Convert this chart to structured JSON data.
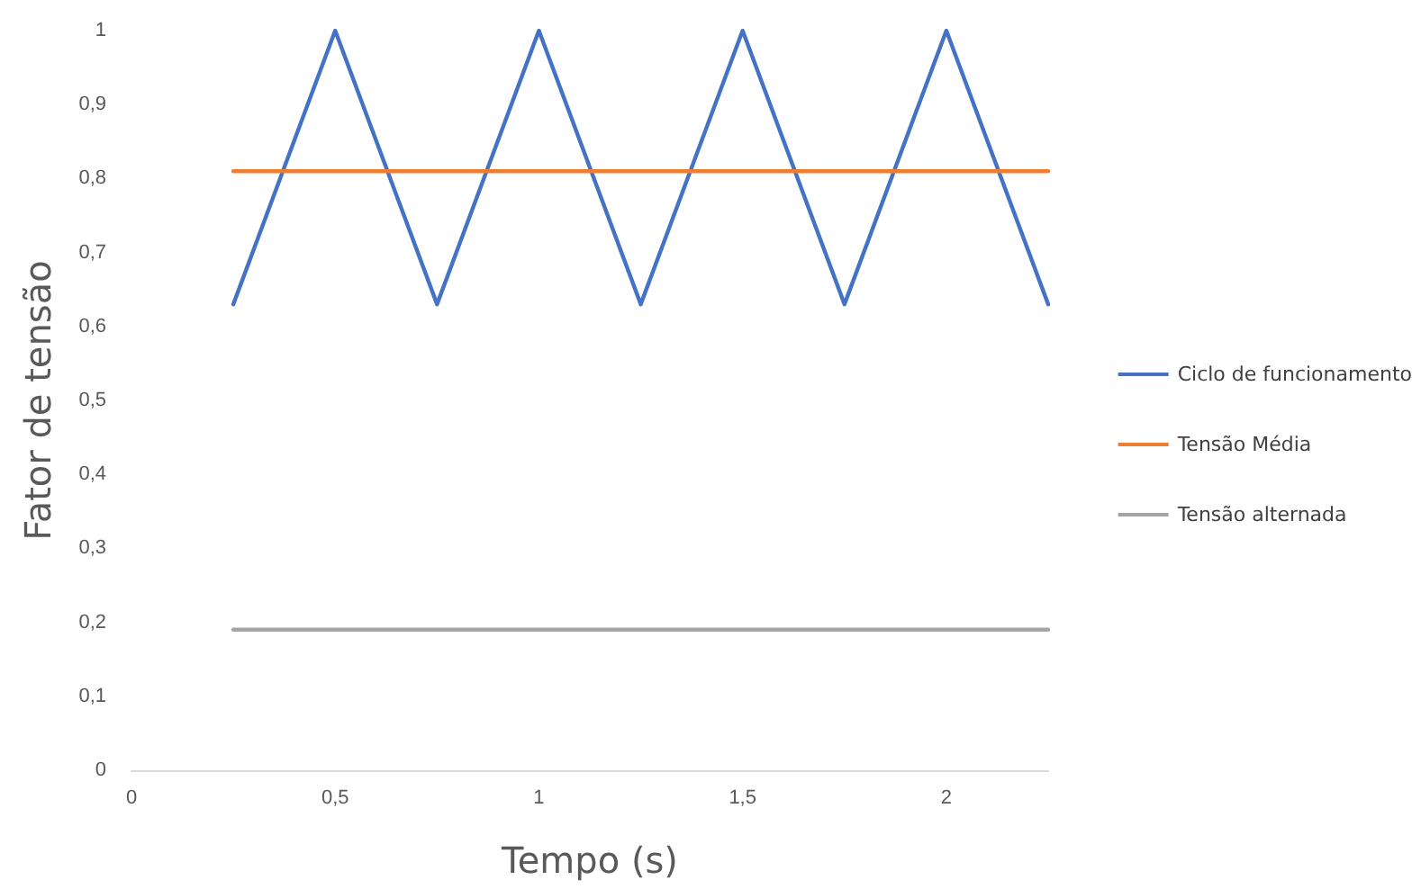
{
  "chart_data": {
    "type": "line",
    "xlabel": "Tempo (s)",
    "ylabel": "Fator de tensão",
    "xlim": [
      0,
      2.25
    ],
    "xticks": [
      0,
      {
        "value": 0.5,
        "label": "0,5"
      },
      1,
      {
        "value": 1.5,
        "label": "1,5"
      },
      2
    ],
    "ylim": [
      0,
      1
    ],
    "yticks": [
      0,
      {
        "value": 0.1,
        "label": "0,1"
      },
      {
        "value": 0.2,
        "label": "0,2"
      },
      {
        "value": 0.3,
        "label": "0,3"
      },
      {
        "value": 0.4,
        "label": "0,4"
      },
      {
        "value": 0.5,
        "label": "0,5"
      },
      {
        "value": 0.6,
        "label": "0,6"
      },
      {
        "value": 0.7,
        "label": "0,7"
      },
      {
        "value": 0.8,
        "label": "0,8"
      },
      {
        "value": 0.9,
        "label": "0,9"
      },
      1
    ],
    "grid": false,
    "legend": "right",
    "marker": "none",
    "line_style": "solid",
    "series": [
      {
        "name": "Ciclo de funcionamento",
        "color": "#4472c4",
        "x": [
          0.25,
          0.5,
          0.75,
          1,
          1.25,
          1.5,
          1.75,
          2,
          2.25
        ],
        "values": [
          0.63,
          1,
          0.63,
          1,
          0.63,
          1,
          0.63,
          1,
          0.63
        ]
      },
      {
        "name": "Tensão Média",
        "color": "#ed7d31",
        "x": [
          0.25,
          2.25
        ],
        "values": [
          0.81,
          0.81
        ]
      },
      {
        "name": "Tensão alternada",
        "color": "#a5a5a5",
        "x": [
          0.25,
          2.25
        ],
        "values": [
          0.19,
          0.19
        ]
      }
    ]
  }
}
